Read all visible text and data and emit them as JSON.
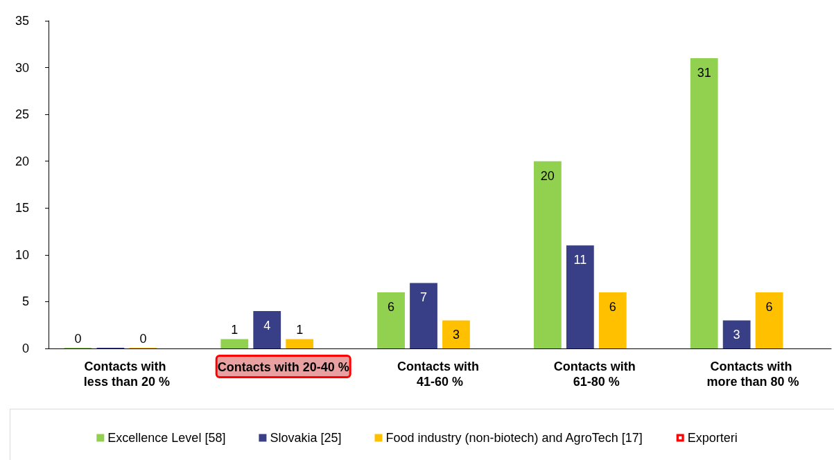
{
  "chart_data": {
    "type": "bar",
    "categories": [
      "Contacts with less than 20 %",
      "Contacts with 20-40 %",
      "Contacts with 41-60 %",
      "Contacts with 61-80 %",
      "Contacts with more than 80 %"
    ],
    "series": [
      {
        "name": "Excellence Level [58]",
        "color": "#92d050",
        "values": [
          0,
          1,
          6,
          20,
          31
        ],
        "value_labels": [
          "0",
          "1",
          "6",
          "20",
          "31"
        ]
      },
      {
        "name": "Slovakia [25]",
        "color": "#383f86",
        "values": [
          0,
          4,
          7,
          11,
          3
        ],
        "value_labels": [
          null,
          "4",
          "7",
          "11",
          "3"
        ]
      },
      {
        "name": "Food industry (non-biotech) and AgroTech [17]",
        "color": "#ffc000",
        "values": [
          0,
          1,
          3,
          6,
          6
        ],
        "value_labels": [
          "0",
          "1",
          "3",
          "6",
          "6"
        ]
      },
      {
        "name": "Exporteri",
        "color": "#ff0000",
        "values": [
          null,
          null,
          null,
          null,
          null
        ]
      }
    ],
    "ylim": [
      0,
      35
    ],
    "yticks": [
      0,
      5,
      10,
      15,
      20,
      25,
      30,
      35
    ],
    "grid": false,
    "legend": "bottom"
  }
}
